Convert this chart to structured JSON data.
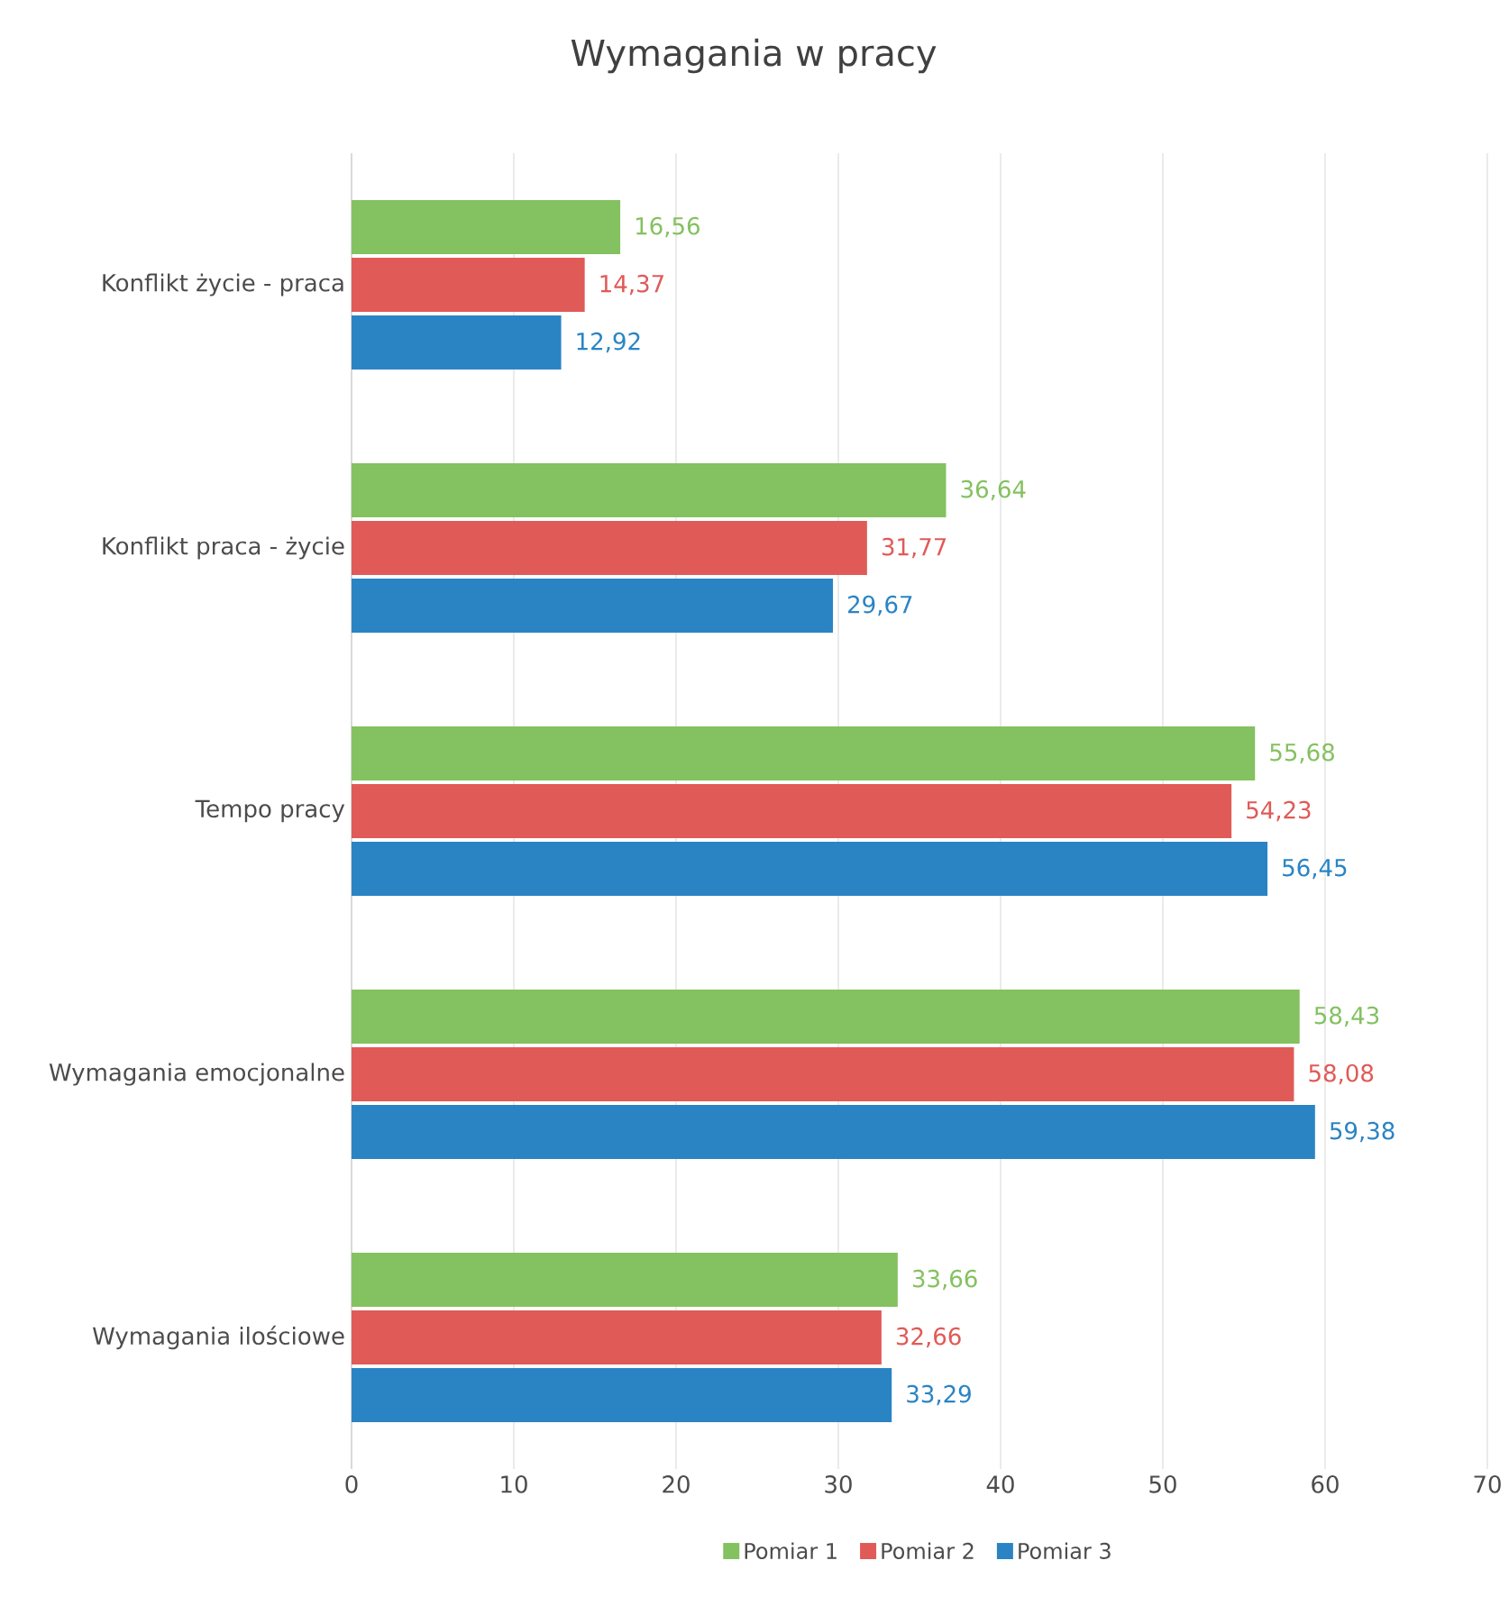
{
  "chart_data": {
    "type": "bar",
    "orientation": "horizontal",
    "title": "Wymagania w pracy",
    "categories": [
      "Konflikt  życie - praca",
      "Konflikt praca - życie",
      "Tempo pracy",
      "Wymagania emocjonalne",
      "Wymagania ilościowe"
    ],
    "series": [
      {
        "name": "Pomiar 1",
        "color": "#84c160",
        "values": [
          16.56,
          36.64,
          55.68,
          58.43,
          33.66
        ],
        "value_labels": [
          "16,56",
          "36,64",
          "55,68",
          "58,43",
          "33,66"
        ]
      },
      {
        "name": "Pomiar 2",
        "color": "#e05a57",
        "values": [
          14.37,
          31.77,
          54.23,
          58.08,
          32.66
        ],
        "value_labels": [
          "14,37",
          "31,77",
          "54,23",
          "58,08",
          "32,66"
        ]
      },
      {
        "name": "Pomiar 3",
        "color": "#2a84c4",
        "values": [
          12.92,
          29.67,
          56.45,
          59.38,
          33.29
        ],
        "value_labels": [
          "12,92",
          "29,67",
          "56,45",
          "59,38",
          "33,29"
        ]
      }
    ],
    "xlim": [
      0,
      70
    ],
    "xticks": [
      0,
      10,
      20,
      30,
      40,
      50,
      60,
      70
    ],
    "grid": "x",
    "legend": "bottom"
  }
}
